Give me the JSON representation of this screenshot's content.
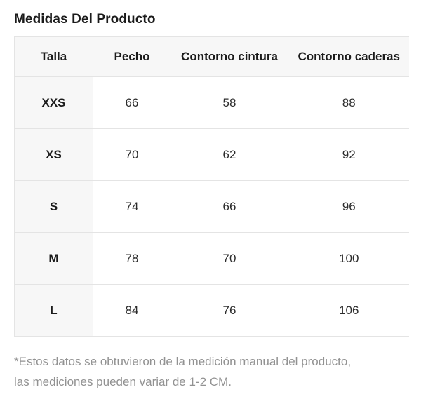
{
  "page": {
    "title": "Medidas Del Producto"
  },
  "table": {
    "columns": {
      "talla": "Talla",
      "pecho": "Pecho",
      "cintura": "Contorno cintura",
      "caderas": "Contorno caderas"
    },
    "rows": [
      {
        "size": "XXS",
        "pecho": "66",
        "cintura": "58",
        "caderas": "88"
      },
      {
        "size": "XS",
        "pecho": "70",
        "cintura": "62",
        "caderas": "92"
      },
      {
        "size": "S",
        "pecho": "74",
        "cintura": "66",
        "caderas": "96"
      },
      {
        "size": "M",
        "pecho": "78",
        "cintura": "70",
        "caderas": "100"
      },
      {
        "size": "L",
        "pecho": "84",
        "cintura": "76",
        "caderas": "106"
      }
    ]
  },
  "footnote": {
    "line1": "*Estos datos se obtuvieron de la medición manual del producto,",
    "line2": "las mediciones pueden variar de 1-2 CM."
  },
  "colors": {
    "header_bg": "#f7f7f7",
    "border": "#e4e4e4",
    "text": "#1b1b1b",
    "muted_text": "#929292",
    "background": "#ffffff"
  }
}
